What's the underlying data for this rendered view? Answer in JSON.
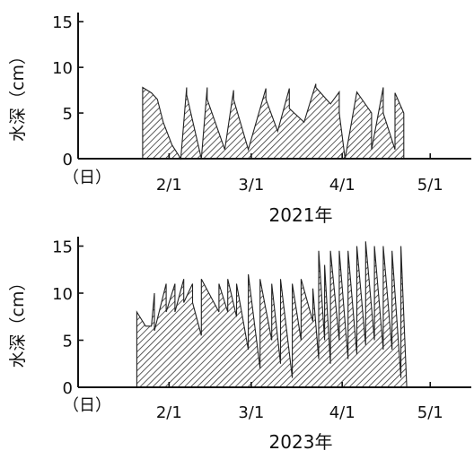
{
  "chart_data": [
    {
      "type": "area",
      "title": "2021年",
      "ylabel": "水深（cm）",
      "xlabel": "",
      "x_unit_label": "（日）",
      "x_axis_type": "date",
      "xlim": [
        "2021-01-01",
        "2021-05-15"
      ],
      "ylim": [
        0,
        16
      ],
      "yticks": [
        0,
        5,
        10,
        15
      ],
      "xticks": [
        {
          "date": "2021-02-01",
          "label": "2/1"
        },
        {
          "date": "2021-03-01",
          "label": "3/1"
        },
        {
          "date": "2021-04-01",
          "label": "4/1"
        },
        {
          "date": "2021-05-01",
          "label": "5/1"
        }
      ],
      "grid": false,
      "series": [
        {
          "x": [
            "2021-01-23",
            "2021-01-23",
            "2021-01-26",
            "2021-01-28",
            "2021-01-30",
            "2021-02-02",
            "2021-02-05",
            "2021-02-05",
            "2021-02-07",
            "2021-02-07",
            "2021-02-12",
            "2021-02-12",
            "2021-02-14",
            "2021-02-14",
            "2021-02-20",
            "2021-02-20",
            "2021-02-23",
            "2021-02-23",
            "2021-02-28",
            "2021-02-28",
            "2021-03-06",
            "2021-03-06",
            "2021-03-10",
            "2021-03-10",
            "2021-03-14",
            "2021-03-14",
            "2021-03-19",
            "2021-03-19",
            "2021-03-23",
            "2021-03-23",
            "2021-03-28",
            "2021-03-28",
            "2021-03-31",
            "2021-03-31",
            "2021-04-02",
            "2021-04-02",
            "2021-04-06",
            "2021-04-11",
            "2021-04-11",
            "2021-04-15",
            "2021-04-15",
            "2021-04-19",
            "2021-04-19",
            "2021-04-22",
            "2021-04-22",
            "2021-04-25",
            "2021-04-25"
          ],
          "y": [
            0,
            7.8,
            7.2,
            6.5,
            4.0,
            1.5,
            0,
            0,
            7.8,
            7.0,
            0,
            0,
            7.8,
            6.5,
            1.0,
            1.0,
            7.5,
            6.5,
            1.0,
            1.0,
            7.7,
            6.5,
            3.0,
            3.0,
            7.7,
            5.5,
            4.0,
            4.0,
            8.2,
            7.8,
            6.0,
            6.0,
            7.3,
            5.0,
            0,
            0,
            7.3,
            5.0,
            1.0,
            7.8,
            5.0,
            1.0,
            7.2,
            5.0,
            0,
            0,
            0
          ]
        }
      ]
    },
    {
      "type": "area",
      "title": "2023年",
      "ylabel": "水深（cm）",
      "xlabel": "",
      "x_unit_label": "（日）",
      "x_axis_type": "date",
      "xlim": [
        "2023-01-01",
        "2023-05-15"
      ],
      "ylim": [
        0,
        16
      ],
      "yticks": [
        0,
        5,
        10,
        15
      ],
      "xticks": [
        {
          "date": "2023-02-01",
          "label": "2/1"
        },
        {
          "date": "2023-03-01",
          "label": "3/1"
        },
        {
          "date": "2023-04-01",
          "label": "4/1"
        },
        {
          "date": "2023-05-01",
          "label": "5/1"
        }
      ],
      "grid": false,
      "series": [
        {
          "x": [
            "2023-01-21",
            "2023-01-21",
            "2023-01-24",
            "2023-01-26",
            "2023-01-27",
            "2023-01-27",
            "2023-01-31",
            "2023-01-31",
            "2023-02-03",
            "2023-02-03",
            "2023-02-06",
            "2023-02-06",
            "2023-02-09",
            "2023-02-09",
            "2023-02-12",
            "2023-02-12",
            "2023-02-18",
            "2023-02-18",
            "2023-02-21",
            "2023-02-21",
            "2023-02-24",
            "2023-02-24",
            "2023-02-28",
            "2023-02-28",
            "2023-03-04",
            "2023-03-04",
            "2023-03-08",
            "2023-03-08",
            "2023-03-11",
            "2023-03-11",
            "2023-03-15",
            "2023-03-15",
            "2023-03-18",
            "2023-03-18",
            "2023-03-22",
            "2023-03-22",
            "2023-03-24",
            "2023-03-24",
            "2023-03-26",
            "2023-03-26",
            "2023-03-28",
            "2023-03-28",
            "2023-03-31",
            "2023-03-31",
            "2023-04-03",
            "2023-04-03",
            "2023-04-06",
            "2023-04-06",
            "2023-04-09",
            "2023-04-09",
            "2023-04-12",
            "2023-04-12",
            "2023-04-15",
            "2023-04-15",
            "2023-04-18",
            "2023-04-18",
            "2023-04-21",
            "2023-04-21",
            "2023-04-23",
            "2023-04-23",
            "2023-04-25",
            "2023-04-25",
            "2023-04-28",
            "2023-04-28",
            "2023-04-30",
            "2023-04-30",
            "2023-05-03",
            "2023-05-03",
            "2023-05-06",
            "2023-05-06"
          ],
          "y": [
            0,
            8.0,
            6.5,
            6.5,
            10.0,
            6.0,
            11.0,
            8.0,
            11.0,
            8.0,
            11.5,
            9.0,
            11.0,
            9.0,
            5.5,
            11.5,
            8.0,
            11.0,
            8.0,
            11.5,
            7.5,
            11.0,
            4.0,
            12.0,
            2.0,
            11.5,
            5.0,
            11.0,
            2.5,
            11.5,
            1.0,
            11.0,
            5.0,
            11.5,
            7.0,
            10.5,
            3.0,
            14.5,
            5.0,
            13.0,
            2.5,
            14.5,
            5.0,
            14.5,
            3.0,
            14.5,
            3.5,
            15.0,
            4.5,
            15.5,
            5.0,
            15.0,
            4.0,
            15.0,
            4.0,
            14.5,
            1.0,
            15.0,
            0,
            0,
            0,
            0,
            0,
            0,
            0,
            0,
            0,
            0,
            0,
            0
          ]
        }
      ]
    }
  ]
}
